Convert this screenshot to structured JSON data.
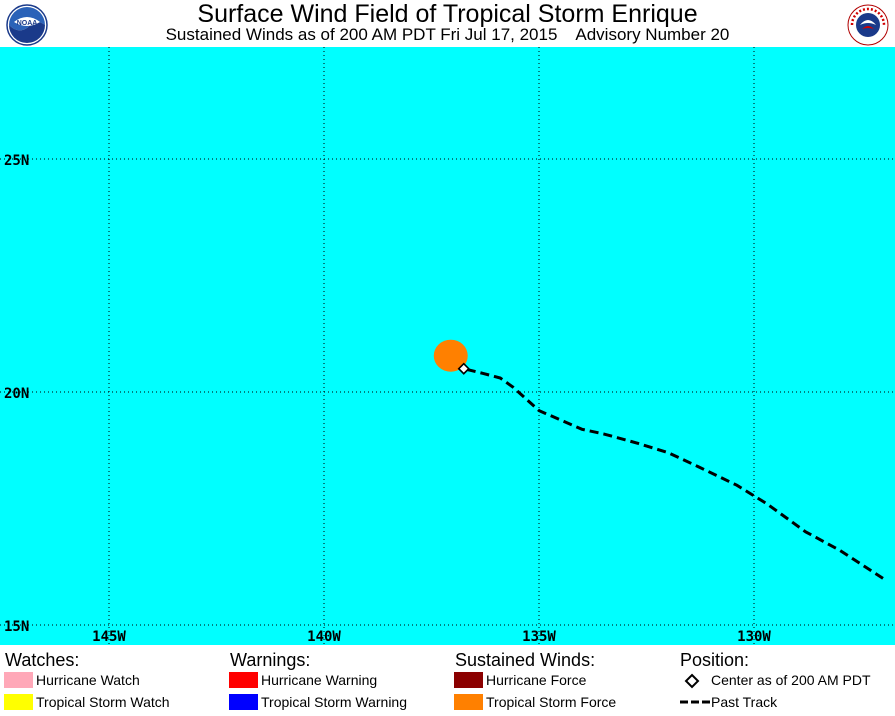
{
  "header": {
    "title": "Surface Wind Field of Tropical Storm Enrique",
    "subtitle": "Sustained Winds as of 200 AM PDT Fri Jul 17, 2015    Advisory Number 20"
  },
  "logos": {
    "left": {
      "icon": "noaa-logo",
      "text": "NOAA"
    },
    "right": {
      "icon": "national-weather-service-logo",
      "text": "NATIONAL WEATHER SERVICE"
    }
  },
  "map": {
    "ocean_color": "#00ffff",
    "lat_labels": [
      "25N",
      "20N",
      "15N"
    ],
    "lon_labels": [
      "145W",
      "140W",
      "135W",
      "130W"
    ],
    "storm": {
      "name": "Enrique",
      "center": {
        "lat": 20.5,
        "lon": 136.75
      },
      "tropical_storm_force_color": "#ff8000"
    },
    "past_track": [
      {
        "lat": 16.0,
        "lon": 127.0
      },
      {
        "lat": 16.6,
        "lon": 128.0
      },
      {
        "lat": 17.0,
        "lon": 128.8
      },
      {
        "lat": 17.6,
        "lon": 129.7
      },
      {
        "lat": 18.0,
        "lon": 130.4
      },
      {
        "lat": 18.4,
        "lon": 131.3
      },
      {
        "lat": 18.7,
        "lon": 132.0
      },
      {
        "lat": 18.9,
        "lon": 132.7
      },
      {
        "lat": 19.1,
        "lon": 133.5
      },
      {
        "lat": 19.2,
        "lon": 134.0
      },
      {
        "lat": 19.6,
        "lon": 135.0
      },
      {
        "lat": 20.1,
        "lon": 135.6
      },
      {
        "lat": 20.3,
        "lon": 135.9
      },
      {
        "lat": 20.4,
        "lon": 136.3
      },
      {
        "lat": 20.5,
        "lon": 136.75
      }
    ]
  },
  "legend": {
    "watches": {
      "heading": "Watches:",
      "items": [
        {
          "label": "Hurricane Watch",
          "color": "#ffa8b8"
        },
        {
          "label": "Tropical Storm Watch",
          "color": "#ffff00"
        }
      ]
    },
    "warnings": {
      "heading": "Warnings:",
      "items": [
        {
          "label": "Hurricane Warning",
          "color": "#ff0000"
        },
        {
          "label": "Tropical Storm Warning",
          "color": "#0000ff"
        }
      ]
    },
    "winds": {
      "heading": "Sustained Winds:",
      "items": [
        {
          "label": "Hurricane Force",
          "color": "#8b0000"
        },
        {
          "label": "Tropical Storm Force",
          "color": "#ff8000"
        }
      ]
    },
    "position": {
      "heading": "Position:",
      "items": [
        {
          "label": "Center as of 200 AM PDT",
          "icon": "diamond-icon"
        },
        {
          "label": "Past Track",
          "icon": "dashed-line-icon"
        }
      ]
    }
  }
}
